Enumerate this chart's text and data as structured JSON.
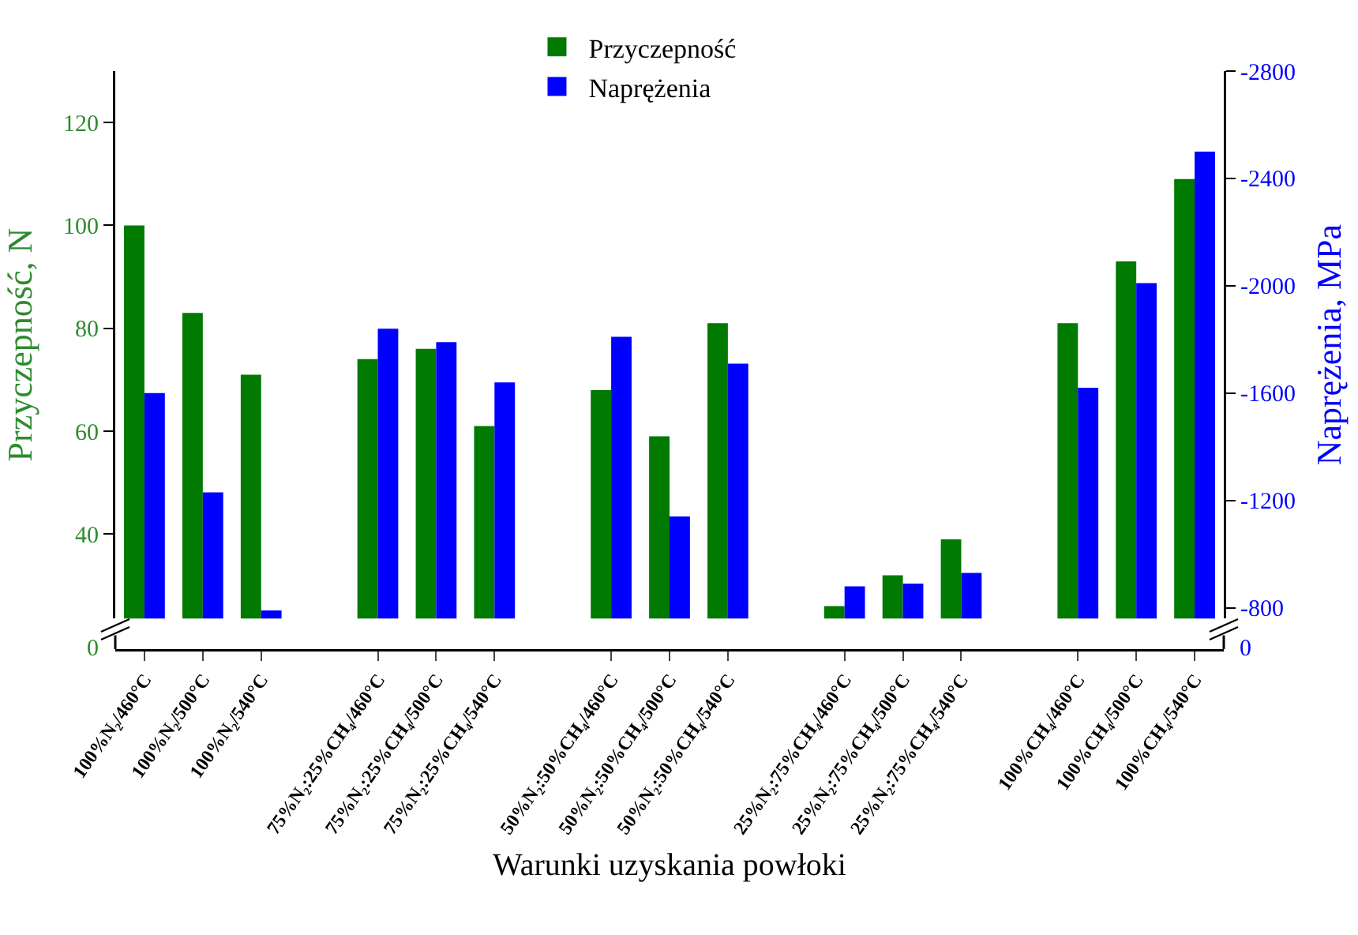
{
  "chart_data": {
    "type": "bar",
    "ylabel": "Przyczepność, N",
    "y2label": "Naprężenia, MPa",
    "xlabel": "Warunki uzyskania powłoki",
    "categories": [
      "100%N₂/460°C",
      "100%N₂/500°C",
      "100%N₂/540°C",
      null,
      "75%N₂:25%CH₄/460°C",
      "75%N₂:25%CH₄/500°C",
      "75%N₂:25%CH₄/540°C",
      null,
      "50%N₂:50%CH₄/460°C",
      "50%N₂:50%CH₄/500°C",
      "50%N₂:50%CH₄/540°C",
      null,
      "25%N₂:75%CH₄/460°C",
      "25%N₂:75%CH₄/500°C",
      "25%N₂:75%CH₄/540°C",
      null,
      "100%CH₄/460°C",
      "100%CH₄/500°C",
      "100%CH₄/540°C"
    ],
    "series": [
      {
        "name": "Przyczepność",
        "color": "#007a00",
        "values": [
          100,
          83,
          71,
          null,
          74,
          76,
          61,
          null,
          68,
          59,
          81,
          null,
          26,
          32,
          39,
          null,
          81,
          93,
          109
        ]
      },
      {
        "name": "Naprężenia",
        "color": "#0000ff",
        "axis": "y2",
        "values": [
          -1600,
          -1230,
          -790,
          null,
          -1840,
          -1790,
          -1640,
          null,
          -1810,
          -1140,
          -1710,
          null,
          -880,
          -890,
          -930,
          null,
          -1620,
          -2010,
          -2500
        ]
      }
    ],
    "ylim": [
      23.6,
      130
    ],
    "yticks": [
      40,
      60,
      80,
      100,
      120
    ],
    "y2lim": [
      -760,
      -2800
    ],
    "y2ticks": [
      -800,
      -1200,
      -1600,
      -2000,
      -2400,
      -2800
    ],
    "annotations": [
      "0",
      "0"
    ],
    "legend": "top"
  }
}
